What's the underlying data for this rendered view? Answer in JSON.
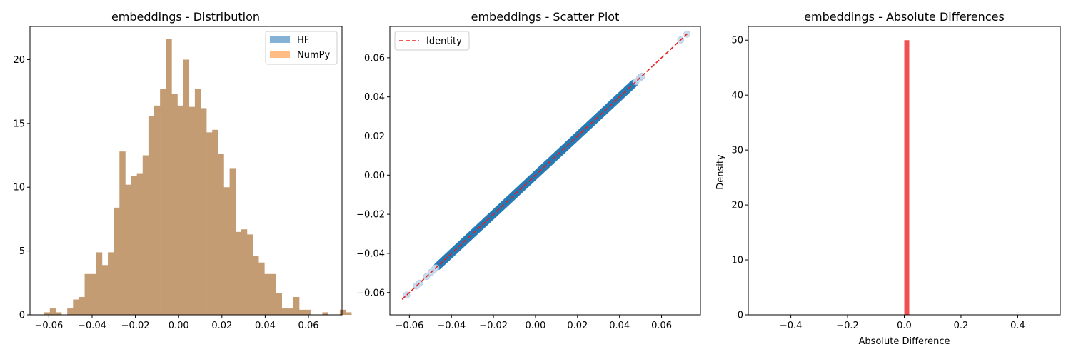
{
  "chart_data": [
    {
      "type": "bar",
      "title": "embeddings - Distribution",
      "xlabel": "",
      "ylabel": "",
      "xlim": [
        -0.0687,
        0.0755
      ],
      "ylim": [
        0,
        22.6
      ],
      "xticks": [
        -0.06,
        -0.04,
        -0.02,
        0.0,
        0.02,
        0.04,
        0.06
      ],
      "xtick_labels": [
        "−0.06",
        "−0.04",
        "−0.02",
        "0.00",
        "0.02",
        "0.04",
        "0.06"
      ],
      "yticks": [
        0,
        5,
        10,
        15,
        20
      ],
      "ytick_labels": [
        "0",
        "5",
        "10",
        "15",
        "20"
      ],
      "bin_start": -0.0622,
      "bin_width": 0.00268,
      "overlap_color": "#c49c73",
      "legend": {
        "placement": "top-right",
        "entries": [
          {
            "label": "HF",
            "color": "#84b2d6"
          },
          {
            "label": "NumPy",
            "color": "#ffbd85"
          }
        ]
      },
      "series": [
        {
          "name": "HF",
          "values": [
            0.2,
            0.5,
            0.2,
            0,
            0.5,
            1.2,
            1.4,
            3.2,
            3.2,
            4.9,
            3.9,
            4.9,
            8.4,
            12.8,
            10.2,
            10.9,
            11.1,
            12.5,
            15.6,
            16.4,
            17.7,
            21.6,
            17.3,
            16.4,
            20,
            16.3,
            17.7,
            16.2,
            14.3,
            14.5,
            12.6,
            10.0,
            11.5,
            6.5,
            6.7,
            6.3,
            4.6,
            4.1,
            3.2,
            3.2,
            1.7,
            0.5,
            0.5,
            1.4,
            0.4,
            0.4,
            0,
            0,
            0.2,
            0,
            0,
            0.4,
            0.2
          ]
        },
        {
          "name": "NumPy",
          "values": [
            0.2,
            0.5,
            0.2,
            0,
            0.5,
            1.2,
            1.4,
            3.2,
            3.2,
            4.9,
            3.9,
            4.9,
            8.4,
            12.8,
            10.2,
            10.9,
            11.1,
            12.5,
            15.6,
            16.4,
            17.7,
            21.6,
            17.3,
            16.4,
            20,
            16.3,
            17.7,
            16.2,
            14.3,
            14.5,
            12.6,
            10.0,
            11.5,
            6.5,
            6.7,
            6.3,
            4.6,
            4.1,
            3.2,
            3.2,
            1.7,
            0.5,
            0.5,
            1.4,
            0.4,
            0.4,
            0,
            0,
            0.2,
            0,
            0,
            0.4,
            0.2
          ]
        }
      ]
    },
    {
      "type": "scatter",
      "title": "embeddings - Scatter Plot",
      "xlabel": "",
      "ylabel": "",
      "xlim": [
        -0.0693,
        0.0785
      ],
      "ylim": [
        -0.0714,
        0.076
      ],
      "xticks": [
        -0.06,
        -0.04,
        -0.02,
        0.0,
        0.02,
        0.04,
        0.06
      ],
      "xtick_labels": [
        "−0.06",
        "−0.04",
        "−0.02",
        "0.00",
        "0.02",
        "0.04",
        "0.06"
      ],
      "yticks": [
        -0.06,
        -0.04,
        -0.02,
        0.0,
        0.02,
        0.04,
        0.06
      ],
      "ytick_labels": [
        "−0.06",
        "−0.04",
        "−0.02",
        "0.00",
        "0.02",
        "0.04",
        "0.06"
      ],
      "points_color": "#1f77b4",
      "identity_color": "#e8221f",
      "identity_line": {
        "name": "Identity",
        "x": [
          -0.0635,
          0.0725
        ],
        "y": [
          -0.0635,
          0.0725
        ]
      },
      "sparse_points": [
        -0.0613,
        -0.0567,
        -0.0552,
        -0.0518,
        -0.0497,
        -0.0483,
        -0.0474,
        0.0478,
        0.0496,
        0.0503,
        0.0506,
        0.0691,
        0.0721
      ],
      "dense_range": [
        -0.0465,
        0.0468
      ],
      "legend": {
        "placement": "top-left",
        "entries": [
          {
            "label": "Identity",
            "color": "#e8221f"
          }
        ]
      }
    },
    {
      "type": "bar",
      "title": "embeddings - Absolute Differences",
      "xlabel": "Absolute Difference",
      "ylabel": "Density",
      "xlim": [
        -0.55,
        0.55
      ],
      "ylim": [
        0,
        52.5
      ],
      "xticks": [
        -0.4,
        -0.2,
        0.0,
        0.2,
        0.4
      ],
      "xtick_labels": [
        "−0.4",
        "−0.2",
        "0.0",
        "0.2",
        "0.4"
      ],
      "yticks": [
        0,
        10,
        20,
        30,
        40,
        50
      ],
      "ytick_labels": [
        "0",
        "10",
        "20",
        "30",
        "40",
        "50"
      ],
      "color": "#f05050",
      "bars": [
        {
          "x0": 0.0,
          "x1": 0.01,
          "value": 50
        }
      ]
    }
  ]
}
